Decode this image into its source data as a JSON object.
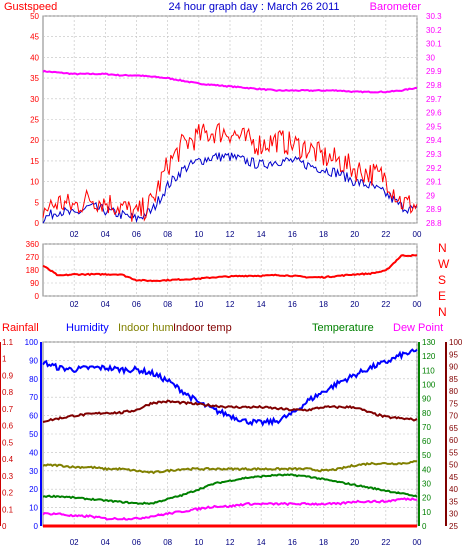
{
  "colors": {
    "gust": "#ff0000",
    "wind": "#0000cc",
    "baro": "#ff00ff",
    "dir": "#ff0000",
    "rain": "#ff0000",
    "hum": "#0000ff",
    "inhum": "#808000",
    "intemp": "#800000",
    "temp": "#008000",
    "dew": "#ff00ff",
    "axisBlue": "#0000ff",
    "axisRed": "#cc0000",
    "axisGreen": "#008000",
    "axisMaroon": "#800000",
    "grid": "#c0c0c0",
    "tick": "#000080"
  },
  "header": {
    "gust_label": "Gustspeed",
    "title": "24 hour graph day : March 26 2011",
    "baro_label": "Barometer"
  },
  "compass": [
    "N",
    "W",
    "S",
    "E",
    "N"
  ],
  "legend": {
    "rainfall": "Rainfall",
    "humidity": "Humidity",
    "indoor_hum": "Indoor hum",
    "indoor_temp": "Indoor temp",
    "temperature": "Temperature",
    "dew_point": "Dew Point"
  },
  "chart_data": [
    {
      "type": "line",
      "title": "24 hour graph day : March 26 2011",
      "x_ticks": [
        "02",
        "04",
        "06",
        "08",
        "10",
        "12",
        "14",
        "16",
        "18",
        "20",
        "22",
        "00"
      ],
      "y_left_ticks": [
        "0",
        "5",
        "10",
        "15",
        "20",
        "25",
        "30",
        "35",
        "40",
        "45",
        "50"
      ],
      "y_left_label": "Gustspeed",
      "ylim_left": [
        0,
        50
      ],
      "y_right_ticks": [
        "28.8",
        "28.9",
        "29",
        "29.1",
        "29.2",
        "29.3",
        "29.4",
        "29.5",
        "29.6",
        "29.7",
        "29.8",
        "29.9",
        "30",
        "30.1",
        "30.2",
        "30.3"
      ],
      "y_right_label": "Barometer",
      "ylim_right": [
        28.8,
        30.3
      ],
      "x_hours": [
        0,
        1,
        2,
        3,
        4,
        5,
        6,
        7,
        8,
        9,
        10,
        11,
        12,
        13,
        14,
        15,
        16,
        17,
        18,
        19,
        20,
        21,
        22,
        23,
        24
      ],
      "series": [
        {
          "name": "Gustspeed",
          "axis": "left",
          "values": [
            3,
            5,
            4,
            6,
            5,
            4,
            2,
            5,
            14,
            19,
            21,
            22,
            22,
            20,
            19,
            20,
            19,
            18,
            16,
            15,
            13,
            12,
            11,
            5,
            4
          ]
        },
        {
          "name": "",
          "axis": "left",
          "values": [
            1,
            3,
            2,
            4,
            3,
            2,
            1,
            3,
            9,
            13,
            15,
            16,
            16,
            15,
            14,
            15,
            15,
            14,
            13,
            12,
            10,
            9,
            7,
            4,
            3
          ]
        },
        {
          "name": "Barometer",
          "axis": "right",
          "values": [
            29.9,
            29.89,
            29.88,
            29.88,
            29.88,
            29.87,
            29.87,
            29.86,
            29.85,
            29.83,
            29.81,
            29.8,
            29.79,
            29.78,
            29.77,
            29.76,
            29.76,
            29.76,
            29.76,
            29.76,
            29.75,
            29.75,
            29.75,
            29.76,
            29.78
          ]
        }
      ]
    },
    {
      "type": "line",
      "x_ticks": [
        "02",
        "04",
        "06",
        "08",
        "10",
        "12",
        "14",
        "16",
        "18",
        "20",
        "22",
        "00"
      ],
      "y_left_ticks": [
        "360",
        "270",
        "180",
        "90",
        "0"
      ],
      "ylim_left": [
        0,
        360
      ],
      "y_right_labels": [
        "N",
        "W",
        "S",
        "E",
        "N"
      ],
      "x_hours": [
        0,
        1,
        2,
        3,
        4,
        5,
        6,
        7,
        8,
        9,
        10,
        11,
        12,
        13,
        14,
        15,
        16,
        17,
        18,
        19,
        20,
        21,
        22,
        23,
        24
      ],
      "series": [
        {
          "name": "",
          "values": [
            210,
            140,
            150,
            150,
            150,
            150,
            110,
            105,
            110,
            115,
            120,
            130,
            135,
            140,
            140,
            145,
            140,
            130,
            130,
            140,
            150,
            155,
            175,
            280,
            280
          ]
        }
      ]
    },
    {
      "type": "line",
      "x_ticks": [
        "02",
        "04",
        "06",
        "08",
        "10",
        "12",
        "14",
        "16",
        "18",
        "20",
        "22",
        "00"
      ],
      "axes": [
        {
          "label": "Rainfall",
          "ticks": [
            "0",
            "0.1",
            "0.2",
            "0.3",
            "0.4",
            "0.5",
            "0.6",
            "0.7",
            "0.8",
            "0.9",
            "1",
            "1.1"
          ],
          "range": [
            0,
            1.1
          ]
        },
        {
          "label": "Humidity",
          "ticks": [
            "0",
            "10",
            "20",
            "30",
            "40",
            "50",
            "60",
            "70",
            "80",
            "90",
            "100"
          ],
          "range": [
            0,
            100
          ]
        },
        {
          "label": "Temperature",
          "ticks": [
            "0",
            "10",
            "20",
            "30",
            "40",
            "50",
            "60",
            "70",
            "80",
            "90",
            "100",
            "110",
            "120",
            "130"
          ],
          "range": [
            0,
            130
          ]
        },
        {
          "label": "Dew Point",
          "ticks": [
            "25",
            "30",
            "35",
            "40",
            "45",
            "50",
            "55",
            "60",
            "65",
            "70",
            "75",
            "80",
            "85",
            "90",
            "95",
            "100"
          ],
          "range": [
            25,
            100
          ]
        }
      ],
      "x_hours": [
        0,
        1,
        2,
        3,
        4,
        5,
        6,
        7,
        8,
        9,
        10,
        11,
        12,
        13,
        14,
        15,
        16,
        17,
        18,
        19,
        20,
        21,
        22,
        23,
        24
      ],
      "series": [
        {
          "name": "Humidity",
          "axis": "Humidity",
          "values": [
            89,
            86,
            85,
            86,
            86,
            85,
            85,
            83,
            79,
            73,
            67,
            63,
            60,
            57,
            56,
            57,
            61,
            68,
            73,
            78,
            82,
            86,
            89,
            93,
            95
          ]
        },
        {
          "name": "Indoor hum",
          "axis": "Humidity",
          "values": [
            33,
            33,
            32,
            32,
            31,
            31,
            30,
            29,
            30,
            31,
            31,
            31,
            31,
            31,
            31,
            31,
            31,
            31,
            30,
            31,
            33,
            34,
            34,
            34,
            35
          ]
        },
        {
          "name": "Indoor temp",
          "axis": "Temperature",
          "values": [
            74,
            76,
            78,
            79,
            80,
            80,
            82,
            87,
            88,
            87,
            86,
            85,
            84,
            84,
            84,
            83,
            82,
            82,
            84,
            84,
            84,
            80,
            77,
            76,
            75
          ]
        },
        {
          "name": "Temperature",
          "axis": "Temperature",
          "values": [
            21,
            21,
            20,
            19,
            18,
            17,
            16,
            16,
            19,
            22,
            26,
            30,
            32,
            34,
            35,
            36,
            36,
            35,
            33,
            31,
            29,
            27,
            25,
            23,
            21
          ]
        },
        {
          "name": "Dew Point",
          "axis": "Dew Point",
          "values": [
            30,
            30,
            29,
            29,
            28,
            28,
            28,
            29,
            30,
            31,
            32,
            33,
            33,
            34,
            34,
            34,
            34,
            34,
            34,
            34,
            35,
            35,
            35,
            36,
            36
          ]
        },
        {
          "name": "Rainfall",
          "axis": "Rainfall",
          "values": [
            0,
            0,
            0,
            0,
            0,
            0,
            0,
            0,
            0,
            0,
            0,
            0,
            0,
            0,
            0,
            0,
            0,
            0,
            0,
            0,
            0,
            0,
            0,
            0,
            0
          ]
        }
      ]
    }
  ]
}
